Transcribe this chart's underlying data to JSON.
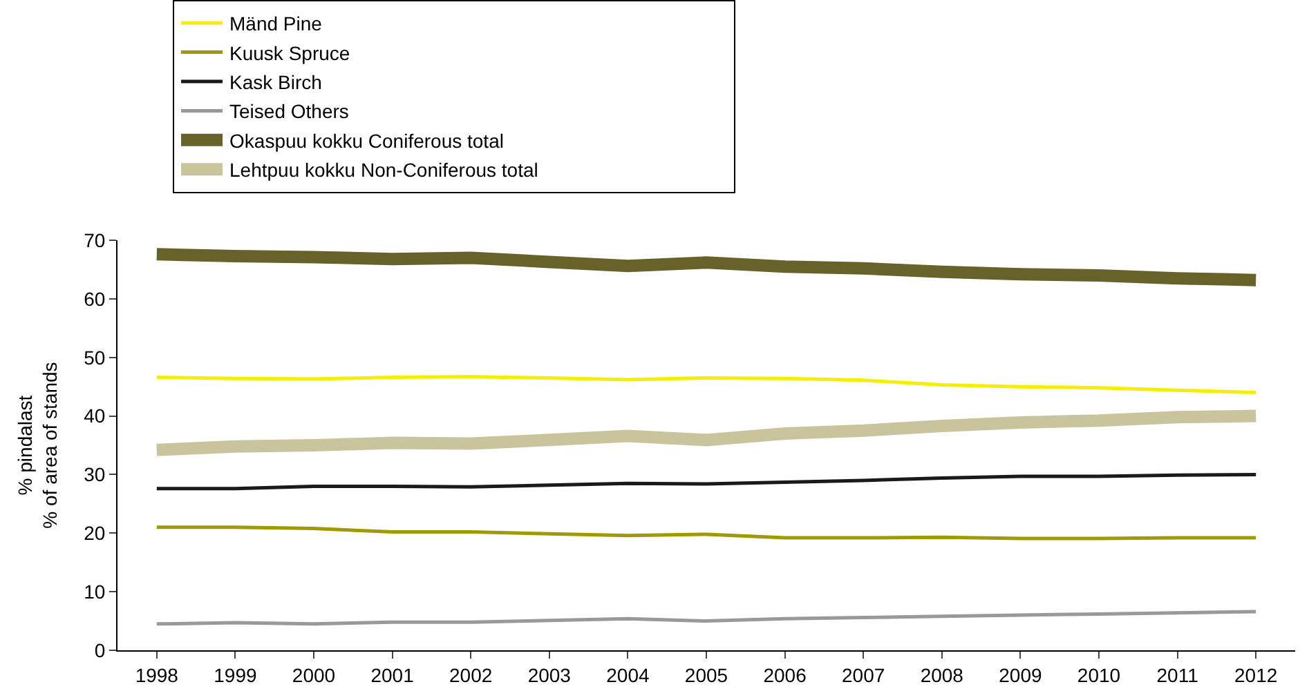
{
  "chart_data": {
    "type": "line",
    "ylabel": "% pindalast\n% of area of stands",
    "categories": [
      "1998",
      "1999",
      "2000",
      "2001",
      "2002",
      "2003",
      "2004",
      "2005",
      "2006",
      "2007",
      "2008",
      "2009",
      "2010",
      "2011",
      "2012"
    ],
    "ylim": [
      0,
      70
    ],
    "yticks": [
      0,
      10,
      20,
      30,
      40,
      50,
      60,
      70
    ],
    "legend": "top",
    "marker": "none",
    "line_style": "solid",
    "series": [
      {
        "name": "Mänd Pine",
        "color": "#f5ee00",
        "values": [
          46.6,
          46.4,
          46.3,
          46.6,
          46.7,
          46.5,
          46.2,
          46.5,
          46.4,
          46.1,
          45.3,
          45.0,
          44.8,
          44.4,
          44.0
        ]
      },
      {
        "name": "Kuusk Spruce",
        "color": "#a09a00",
        "values": [
          21.0,
          21.0,
          20.8,
          20.2,
          20.2,
          19.9,
          19.6,
          19.8,
          19.2,
          19.2,
          19.3,
          19.1,
          19.1,
          19.2,
          19.2
        ]
      },
      {
        "name": "Kask Birch",
        "color": "#1a1a1a",
        "values": [
          27.6,
          27.6,
          28.0,
          28.0,
          27.9,
          28.2,
          28.5,
          28.4,
          28.7,
          29.0,
          29.4,
          29.7,
          29.7,
          29.9,
          30.0
        ]
      },
      {
        "name": "Teised Others",
        "color": "#999999",
        "values": [
          4.5,
          4.7,
          4.5,
          4.8,
          4.8,
          5.1,
          5.4,
          5.0,
          5.4,
          5.6,
          5.8,
          6.0,
          6.2,
          6.4,
          6.6
        ]
      },
      {
        "name": "Okaspuu kokku Coniferous total",
        "color": "#67622a",
        "values": [
          67.6,
          67.3,
          67.1,
          66.8,
          67.0,
          66.3,
          65.6,
          66.2,
          65.5,
          65.2,
          64.6,
          64.2,
          64.0,
          63.5,
          63.2
        ]
      },
      {
        "name": "Lehtpuu kokku Non-Coniferous total",
        "color": "#c8c59e",
        "values": [
          34.2,
          34.8,
          35.0,
          35.4,
          35.3,
          35.9,
          36.6,
          35.9,
          37.0,
          37.5,
          38.3,
          38.9,
          39.2,
          39.8,
          40.0
        ]
      }
    ]
  }
}
